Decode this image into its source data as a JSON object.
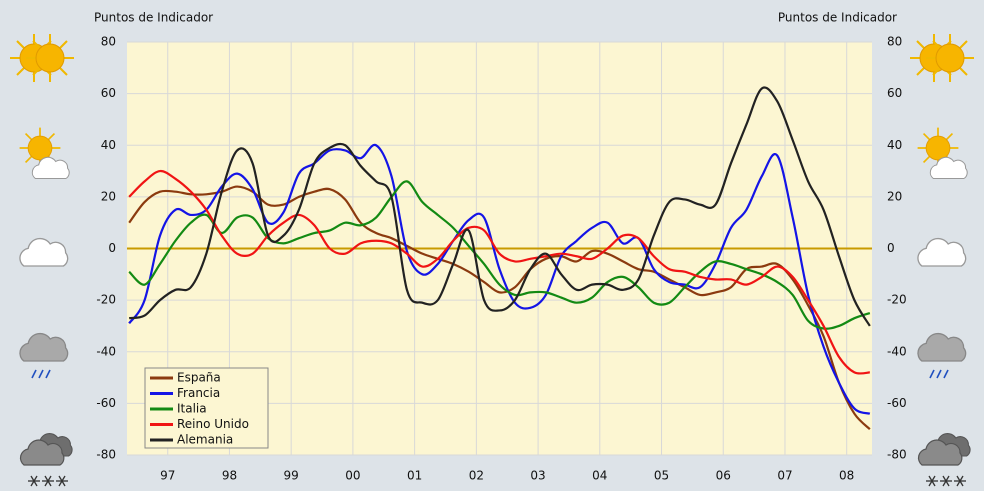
{
  "chart_data": {
    "type": "line",
    "y_label": "Puntos de Indicador",
    "y2_label": "Puntos de Indicador",
    "x": [
      1996.875,
      1997.125,
      1997.375,
      1997.625,
      1997.875,
      1998.125,
      1998.375,
      1998.625,
      1998.875,
      1999.125,
      1999.375,
      1999.625,
      1999.875,
      2000.125,
      2000.375,
      2000.625,
      2000.875,
      2001.125,
      2001.375,
      2001.625,
      2001.875,
      2002.125,
      2002.375,
      2002.625,
      2002.875,
      2003.125,
      2003.375,
      2003.625,
      2003.875,
      2004.125,
      2004.375,
      2004.625,
      2004.875,
      2005.125,
      2005.375,
      2005.625,
      2005.875,
      2006.125,
      2006.375,
      2006.625,
      2006.875,
      2007.125,
      2007.375,
      2007.625,
      2007.875,
      2008.125,
      2008.375,
      2008.625,
      2008.875
    ],
    "xlim": [
      1996.84,
      2008.91
    ],
    "xticks": [
      {
        "value": 1997.5,
        "label": "97"
      },
      {
        "value": 1998.5,
        "label": "98"
      },
      {
        "value": 1999.5,
        "label": "99"
      },
      {
        "value": 2000.5,
        "label": "00"
      },
      {
        "value": 2001.5,
        "label": "01"
      },
      {
        "value": 2002.5,
        "label": "02"
      },
      {
        "value": 2003.5,
        "label": "03"
      },
      {
        "value": 2004.5,
        "label": "04"
      },
      {
        "value": 2005.5,
        "label": "05"
      },
      {
        "value": 2006.5,
        "label": "06"
      },
      {
        "value": 2007.5,
        "label": "07"
      },
      {
        "value": 2008.5,
        "label": "08"
      }
    ],
    "ylim": [
      -80,
      80
    ],
    "yticks": [
      -80,
      -60,
      -40,
      -20,
      0,
      20,
      40,
      60,
      80
    ],
    "y2lim": [
      -80,
      80
    ],
    "y2ticks": [
      -80,
      -60,
      -40,
      -20,
      0,
      20,
      40,
      60,
      80
    ],
    "grid": true,
    "legend": "lower left",
    "series": [
      {
        "name": "España",
        "color": "#8b3a0f",
        "values": [
          10,
          18,
          22,
          22,
          21,
          21,
          22,
          24,
          22,
          17,
          17,
          20,
          22,
          23,
          19,
          10,
          6,
          4,
          1,
          -2,
          -4,
          -6,
          -9,
          -13,
          -17,
          -15,
          -8,
          -4,
          -3,
          -5,
          -1,
          -2,
          -5,
          -8,
          -9,
          -12,
          -15,
          -18,
          -17,
          -15,
          -8,
          -7,
          -6,
          -12,
          -22,
          -34,
          -52,
          -64,
          -70
        ]
      },
      {
        "name": "Francia",
        "color": "#1414e6",
        "values": [
          -29,
          -20,
          5,
          15,
          13,
          15,
          24,
          29,
          23,
          10,
          14,
          29,
          33,
          38,
          38,
          35,
          40,
          28,
          -1,
          -10,
          -6,
          3,
          11,
          12,
          -8,
          -21,
          -23,
          -18,
          -3,
          3,
          8,
          10,
          2,
          4,
          -8,
          -13,
          -14,
          -15,
          -6,
          8,
          15,
          28,
          36,
          12,
          -18,
          -38,
          -52,
          -62,
          -64
        ]
      },
      {
        "name": "Italia",
        "color": "#138a13",
        "values": [
          -9,
          -14,
          -6,
          3,
          10,
          13,
          6,
          12,
          12,
          4,
          2,
          4,
          6,
          7,
          10,
          9,
          12,
          20,
          26,
          18,
          13,
          8,
          1,
          -6,
          -14,
          -18,
          -17,
          -17,
          -19,
          -21,
          -19,
          -13,
          -11,
          -15,
          -21,
          -21,
          -15,
          -9,
          -5,
          -6,
          -8,
          -10,
          -13,
          -18,
          -28,
          -31,
          -30,
          -27,
          -25
        ]
      },
      {
        "name": "Reino Unido",
        "color": "#f01414",
        "values": [
          20,
          26,
          30,
          27,
          22,
          15,
          5,
          -2,
          -2,
          5,
          10,
          13,
          9,
          0,
          -2,
          2,
          3,
          2,
          -2,
          -7,
          -4,
          3,
          8,
          7,
          -2,
          -5,
          -4,
          -3,
          -2,
          -3,
          -4,
          0,
          5,
          4,
          -3,
          -8,
          -9,
          -11,
          -12,
          -12,
          -14,
          -11,
          -7,
          -11,
          -20,
          -30,
          -42,
          -48,
          -48
        ]
      },
      {
        "name": "Alemania",
        "color": "#222222",
        "values": [
          -27,
          -26,
          -20,
          -16,
          -15,
          -2,
          22,
          38,
          33,
          5,
          5,
          15,
          33,
          39,
          40,
          32,
          26,
          20,
          -16,
          -21,
          -20,
          -6,
          7,
          -20,
          -24,
          -20,
          -8,
          -2,
          -10,
          -16,
          -14,
          -14,
          -16,
          -12,
          5,
          18,
          19,
          17,
          17,
          33,
          48,
          62,
          57,
          42,
          26,
          15,
          -3,
          -20,
          -30
        ]
      }
    ]
  }
}
